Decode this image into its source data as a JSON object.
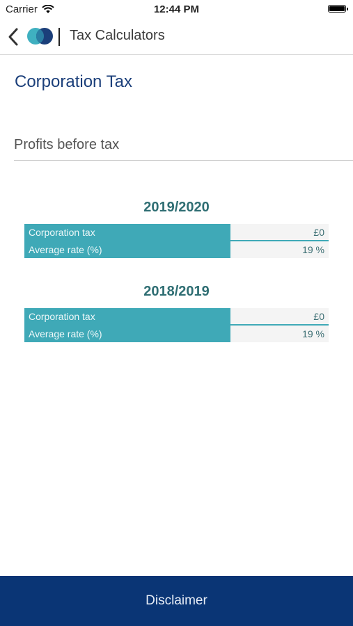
{
  "status_bar": {
    "carrier": "Carrier",
    "time": "12:44 PM"
  },
  "nav": {
    "title": "Tax Calculators",
    "back_icon": "chevron-left-icon",
    "logo_icon": "app-logo"
  },
  "page": {
    "title": "Corporation Tax"
  },
  "input": {
    "placeholder": "Profits before tax",
    "value": ""
  },
  "years": [
    {
      "year": "2019/2020",
      "rows": [
        {
          "label": "Corporation tax",
          "value": "£0"
        },
        {
          "label": "Average rate (%)",
          "value": "19 %"
        }
      ]
    },
    {
      "year": "2018/2019",
      "rows": [
        {
          "label": "Corporation tax",
          "value": "£0"
        },
        {
          "label": "Average rate (%)",
          "value": "19 %"
        }
      ]
    }
  ],
  "footer": {
    "disclaimer": "Disclaimer"
  },
  "colors": {
    "accent": "#3fa9b7",
    "brand": "#0a3575",
    "title": "#1b3f7a",
    "year": "#2f6e73"
  }
}
